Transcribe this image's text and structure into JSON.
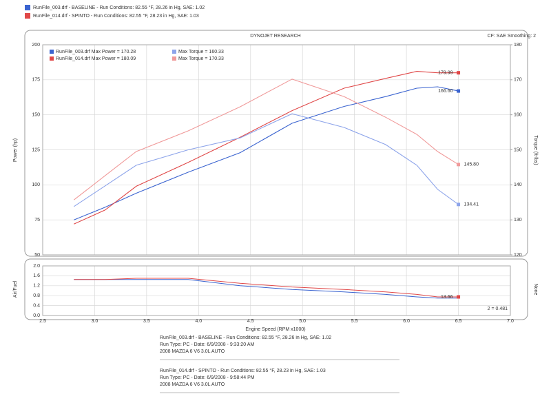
{
  "header": {
    "lines": [
      "RunFile_003.drf - BASELINE - Run Conditions: 82.55 °F, 28.26 in Hg, SAE: 1.02",
      "RunFile_014.drf - SPINTO - Run Conditions: 82.55 °F, 28.23 in Hg, SAE: 1.03"
    ]
  },
  "chart_data": {
    "type": "line",
    "title": "DYNOJET RESEARCH",
    "subtitle": "CF: SAE  Smoothing: 2",
    "xlabel": "Engine Speed (RPM x1000)",
    "ylabel": "Power (hp)",
    "y2label": "Torque (ft-lbs)",
    "x": [
      2.8,
      3.1,
      3.4,
      3.9,
      4.4,
      4.9,
      5.4,
      5.8,
      6.1,
      6.3,
      6.5
    ],
    "xlim": [
      2.5,
      7.0
    ],
    "xticks": [
      2.5,
      {
        "value": 3,
        "label": "3.0"
      },
      3.5,
      {
        "value": 4,
        "label": "4.0"
      },
      4.5,
      {
        "value": 5,
        "label": "5.0"
      },
      5.5,
      {
        "value": 6,
        "label": "6.0"
      },
      6.5,
      {
        "value": 7,
        "label": "7.0"
      }
    ],
    "ylim": [
      50,
      200
    ],
    "yticks": [
      50,
      75,
      100,
      125,
      150,
      175,
      200
    ],
    "y2lim": [
      120,
      180
    ],
    "y2ticks": [
      120,
      130,
      140,
      150,
      160,
      170,
      180
    ],
    "grid": true,
    "series": [
      {
        "name": "RunFile_003.drf Max Power = 170.28",
        "color": "#3b64d0",
        "values": [
          75,
          84,
          94,
          109,
          123,
          144,
          156,
          163,
          169,
          170,
          167
        ],
        "end_label": "166.60"
      },
      {
        "name": "RunFile_014.drf Max Power = 180.09",
        "color": "#e04848",
        "values": [
          72,
          82,
          99,
          116,
          134,
          153,
          169,
          176,
          181,
          180,
          180
        ],
        "end_label": "179.99"
      },
      {
        "name": "Max Torque = 160.33",
        "color": "#8da4ea",
        "axis": "y2",
        "values": [
          133.8,
          139.7,
          145.6,
          150,
          153.4,
          160.3,
          156.4,
          151.5,
          145.6,
          138.7,
          134.4
        ],
        "end_label": "134.41"
      },
      {
        "name": "Max Torque = 170.33",
        "color": "#f09a9a",
        "axis": "y2",
        "values": [
          135.7,
          142.6,
          149.5,
          155.4,
          162.3,
          170.2,
          165.2,
          159.3,
          154.4,
          149.5,
          145.8
        ],
        "end_label": "145.80"
      }
    ],
    "afr": {
      "ylabel": "Air/Fuel",
      "y2label": "None",
      "ylim": [
        0,
        2
      ],
      "yticks": [
        {
          "value": 0,
          "label": "0.0"
        },
        0.4,
        0.8,
        1.2,
        1.6,
        {
          "value": 2,
          "label": "2.0"
        }
      ],
      "note": "2 = 0.481",
      "series": [
        {
          "color": "#3b64d0",
          "values": [
            1.45,
            1.45,
            1.45,
            1.45,
            1.2,
            1.05,
            0.95,
            0.85,
            0.75,
            0.7,
            0.7
          ]
        },
        {
          "color": "#e04848",
          "values": [
            1.45,
            1.45,
            1.5,
            1.5,
            1.3,
            1.15,
            1.05,
            0.95,
            0.85,
            0.75,
            0.75
          ],
          "end_label": "13.66"
        }
      ]
    }
  },
  "footer": {
    "blocks": [
      {
        "color": "#3b64d0",
        "lines": [
          "RunFile_003.drf - BASELINE - Run Conditions: 82.55 °F, 28.26 in Hg, SAE: 1.02",
          "Run Type: PC - Date: 6/9/2008 - 9:33:20 AM",
          "2008 MAZDA 6 V6 3.0L AUTO"
        ]
      },
      {
        "color": "#e04848",
        "lines": [
          "RunFile_014.drf - SPINTO - Run Conditions: 82.55 °F, 28.23 in Hg, SAE: 1.03",
          "Run Type: PC - Date: 6/9/2008 - 9:58:44 PM",
          "2008 MAZDA 6 V6 3.0L AUTO"
        ]
      }
    ]
  }
}
